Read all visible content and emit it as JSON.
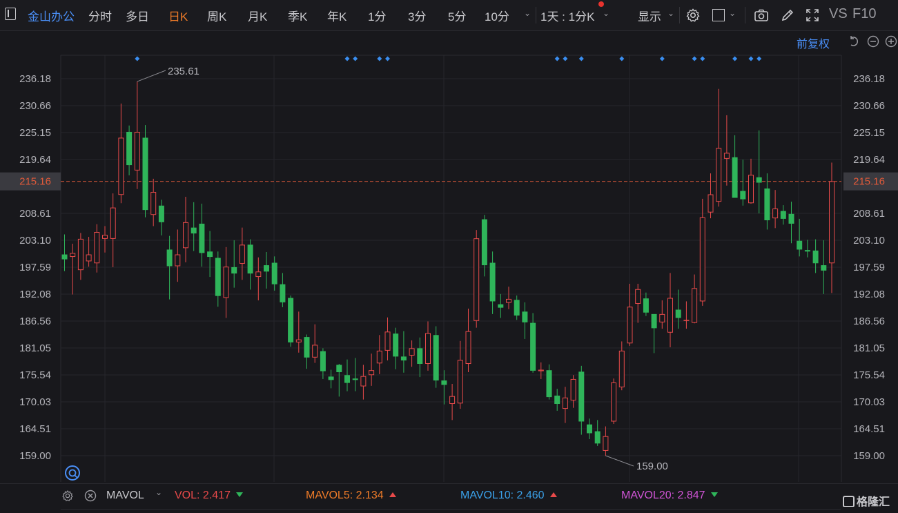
{
  "toolbar": {
    "stock_name": "金山办公",
    "periods": [
      "分时",
      "多日",
      "日K",
      "周K",
      "月K",
      "季K",
      "年K",
      "1分",
      "3分",
      "5分",
      "10分"
    ],
    "active_period": "日K",
    "multi_period": "1天 : 1分K",
    "display_label": "显示",
    "vs_label": "VS",
    "f10_label": "F10"
  },
  "subbar": {
    "adjust_label": "前复权"
  },
  "colors": {
    "up": "#e84a4a",
    "down": "#2fb55a",
    "accent": "#4a8ff7",
    "orange": "#f07c28",
    "current_price": "#e05a3a"
  },
  "volume_bar": {
    "indicator": "MAVOL",
    "vol_label": "VOL:",
    "vol_value": "2.417",
    "mavol5_label": "MAVOL5:",
    "mavol5_value": "2.134",
    "mavol10_label": "MAVOL10:",
    "mavol10_value": "2.460",
    "mavol20_label": "MAVOL20:",
    "mavol20_value": "2.847"
  },
  "watermark": "格隆汇",
  "chart_data": {
    "type": "candlestick",
    "y_ticks": [
      "236.18",
      "230.66",
      "225.15",
      "219.64",
      "208.61",
      "203.10",
      "197.59",
      "192.08",
      "186.56",
      "181.05",
      "175.54",
      "170.03",
      "164.51",
      "159.00"
    ],
    "current_price": "215.16",
    "max_label": "235.61",
    "min_label": "159.00",
    "ylim": [
      159.0,
      236.18
    ],
    "candles": [
      [
        200.2,
        199.2,
        204.3,
        196.8
      ],
      [
        199.7,
        200.5,
        202.4,
        192.0
      ],
      [
        197.0,
        203.4,
        204.6,
        195.0
      ],
      [
        198.8,
        200.2,
        203.8,
        197.7
      ],
      [
        198.4,
        204.8,
        206.4,
        196.5
      ],
      [
        203.4,
        204.2,
        206.0,
        200.6
      ],
      [
        203.4,
        209.8,
        212.7,
        197.6
      ],
      [
        212.4,
        224.1,
        231.1,
        210.7
      ],
      [
        225.3,
        218.5,
        226.6,
        216.4
      ],
      [
        217.4,
        225.3,
        235.61,
        213.6
      ],
      [
        224.1,
        209.3,
        226.7,
        207.8
      ],
      [
        208.3,
        213.0,
        215.7,
        206.0
      ],
      [
        210.2,
        206.8,
        211.4,
        204.1
      ],
      [
        201.2,
        197.8,
        204.0,
        191.0
      ],
      [
        197.8,
        200.2,
        205.3,
        194.6
      ],
      [
        201.5,
        206.8,
        212.0,
        198.6
      ],
      [
        205.7,
        204.5,
        210.9,
        200.9
      ],
      [
        206.5,
        200.5,
        210.6,
        197.7
      ],
      [
        200.8,
        199.7,
        205.0,
        195.6
      ],
      [
        199.5,
        191.7,
        200.8,
        189.5
      ],
      [
        191.3,
        197.7,
        201.7,
        187.2
      ],
      [
        197.6,
        196.3,
        203.1,
        193.4
      ],
      [
        198.3,
        202.2,
        205.7,
        195.0
      ],
      [
        202.2,
        196.3,
        203.3,
        193.0
      ],
      [
        195.6,
        196.7,
        199.6,
        190.8
      ],
      [
        198.0,
        196.7,
        200.7,
        193.2
      ],
      [
        198.5,
        194.1,
        199.8,
        192.8
      ],
      [
        194.1,
        190.4,
        196.4,
        189.4
      ],
      [
        191.3,
        182.2,
        191.8,
        181.3
      ],
      [
        182.2,
        182.8,
        188.5,
        180.1
      ],
      [
        183.3,
        179.1,
        183.8,
        176.8
      ],
      [
        179.1,
        181.7,
        185.9,
        178.0
      ],
      [
        180.4,
        176.3,
        181.0,
        174.7
      ],
      [
        175.2,
        174.5,
        176.6,
        172.8
      ],
      [
        177.6,
        176.1,
        177.8,
        171.1
      ],
      [
        175.5,
        173.9,
        178.7,
        172.2
      ],
      [
        174.8,
        174.5,
        179.0,
        172.2
      ],
      [
        173.2,
        175.3,
        177.6,
        170.5
      ],
      [
        175.5,
        176.5,
        179.9,
        173.3
      ],
      [
        177.9,
        180.5,
        183.7,
        175.7
      ],
      [
        180.5,
        184.4,
        187.3,
        178.5
      ],
      [
        184.0,
        179.3,
        185.2,
        176.7
      ],
      [
        179.3,
        178.5,
        184.5,
        176.0
      ],
      [
        179.5,
        181.0,
        182.6,
        177.2
      ],
      [
        181.0,
        177.8,
        183.2,
        175.1
      ],
      [
        177.8,
        184.1,
        186.5,
        176.4
      ],
      [
        183.7,
        174.4,
        185.5,
        172.9
      ],
      [
        174.4,
        173.5,
        176.5,
        169.5
      ],
      [
        169.6,
        171.2,
        173.7,
        166.3
      ],
      [
        169.7,
        178.6,
        182.5,
        168.6
      ],
      [
        177.8,
        184.5,
        189.1,
        176.1
      ],
      [
        186.6,
        203.5,
        205.2,
        185.2
      ],
      [
        207.4,
        198.0,
        208.3,
        195.7
      ],
      [
        198.5,
        190.6,
        200.8,
        188.0
      ],
      [
        190.0,
        189.3,
        192.1,
        187.2
      ],
      [
        190.3,
        191.1,
        193.6,
        189.0
      ],
      [
        190.9,
        187.7,
        191.8,
        186.8
      ],
      [
        188.5,
        186.3,
        190.4,
        182.9
      ],
      [
        186.2,
        176.4,
        188.2,
        176.0
      ],
      [
        176.3,
        176.6,
        178.1,
        174.7
      ],
      [
        176.5,
        171.0,
        177.7,
        170.5
      ],
      [
        171.3,
        169.6,
        172.7,
        168.2
      ],
      [
        168.6,
        170.9,
        173.1,
        165.7
      ],
      [
        170.3,
        174.7,
        175.5,
        168.8
      ],
      [
        176.2,
        166.0,
        177.4,
        163.3
      ],
      [
        165.4,
        163.6,
        166.6,
        162.4
      ],
      [
        164.0,
        161.5,
        166.3,
        161.0
      ],
      [
        160.0,
        163.0,
        165.0,
        159.0
      ],
      [
        166.0,
        174.0,
        174.8,
        165.5
      ],
      [
        173.0,
        180.5,
        182.4,
        172.4
      ],
      [
        182.0,
        189.5,
        194.2,
        181.5
      ],
      [
        190.1,
        193.1,
        194.2,
        186.2
      ],
      [
        191.2,
        188.3,
        192.4,
        187.6
      ],
      [
        188.0,
        185.1,
        187.8,
        180.0
      ],
      [
        186.3,
        188.0,
        190.8,
        185.0
      ],
      [
        184.2,
        191.3,
        196.4,
        181.2
      ],
      [
        188.9,
        187.2,
        193.0,
        185.0
      ],
      [
        186.6,
        186.8,
        190.6,
        185.0
      ],
      [
        186.2,
        193.3,
        196.1,
        186.1
      ],
      [
        190.6,
        207.8,
        211.6,
        189.7
      ],
      [
        208.8,
        212.5,
        216.8,
        207.6
      ],
      [
        211.0,
        222.0,
        234.1,
        210.0
      ],
      [
        219.8,
        221.0,
        228.7,
        214.3
      ],
      [
        220.1,
        211.8,
        224.6,
        211.8
      ],
      [
        213.2,
        211.5,
        219.6,
        210.2
      ],
      [
        210.7,
        216.5,
        219.8,
        210.6
      ],
      [
        216.0,
        214.9,
        225.6,
        208.6
      ],
      [
        213.7,
        207.2,
        216.8,
        205.3
      ],
      [
        207.6,
        209.6,
        213.4,
        205.6
      ],
      [
        209.1,
        207.5,
        210.3,
        206.3
      ],
      [
        208.5,
        206.5,
        211.0,
        202.5
      ],
      [
        203.0,
        201.2,
        207.5,
        199.8
      ],
      [
        201.1,
        200.8,
        203.2,
        199.6
      ],
      [
        201.0,
        198.4,
        203.3,
        196.4
      ],
      [
        198.0,
        196.9,
        203.1,
        192.1
      ],
      [
        198.4,
        215.2,
        219.0,
        192.3
      ]
    ],
    "markers_at": [
      9,
      35,
      36,
      39,
      40,
      61,
      62,
      64,
      69,
      74,
      78,
      79,
      83,
      85,
      86
    ]
  }
}
